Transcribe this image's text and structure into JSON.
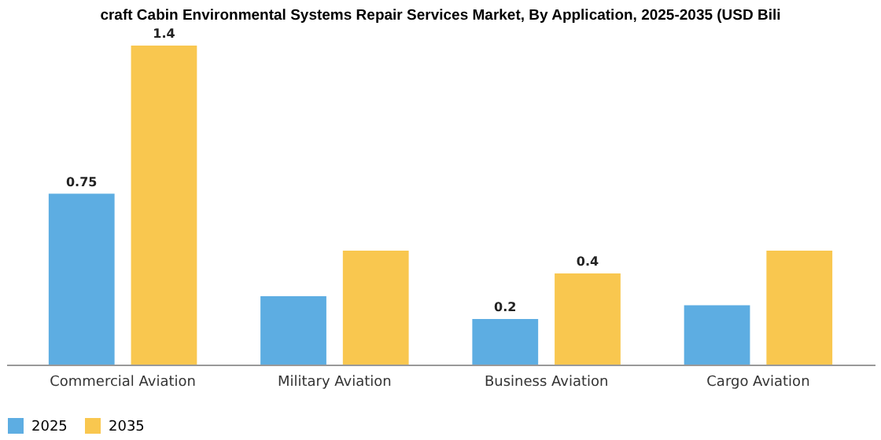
{
  "chart_data": {
    "type": "bar",
    "title": "craft Cabin Environmental Systems Repair Services Market, By Application, 2025-2035 (USD Bili",
    "categories": [
      "Commercial Aviation",
      "Military Aviation",
      "Business Aviation",
      "Cargo Aviation"
    ],
    "series": [
      {
        "name": "2025",
        "color": "#5dade2",
        "values": [
          0.75,
          0.3,
          0.2,
          0.26
        ],
        "value_labels": [
          "0.75",
          null,
          "0.2",
          null
        ]
      },
      {
        "name": "2035",
        "color": "#f9c74f",
        "values": [
          1.4,
          0.5,
          0.4,
          0.5
        ],
        "value_labels": [
          "1.4",
          null,
          "0.4",
          null
        ]
      }
    ],
    "legend": "bottom"
  }
}
